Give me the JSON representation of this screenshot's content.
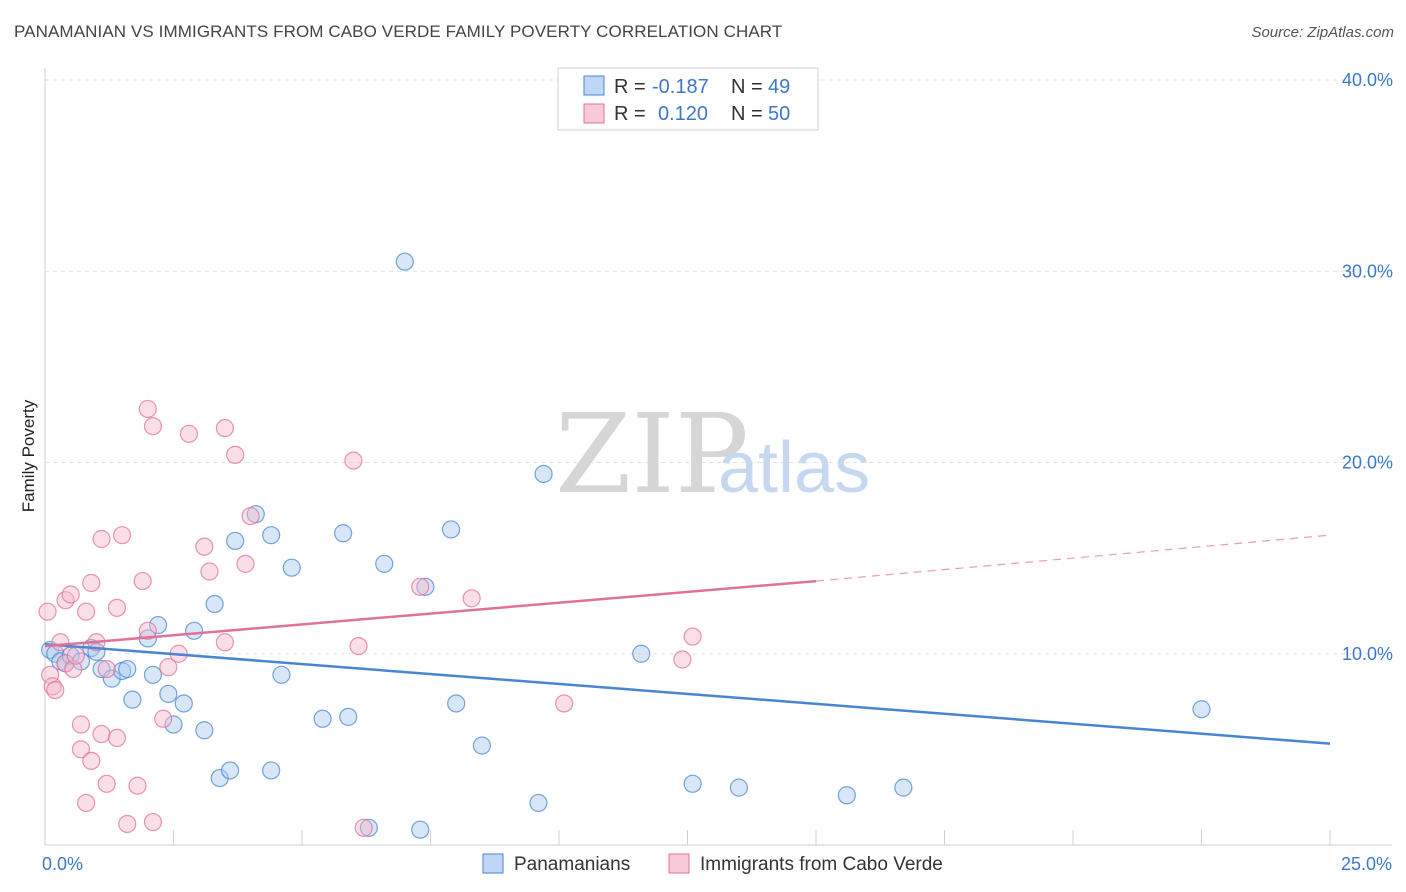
{
  "header": {
    "title": "PANAMANIAN VS IMMIGRANTS FROM CABO VERDE FAMILY POVERTY CORRELATION CHART",
    "source": "Source: ZipAtlas.com"
  },
  "watermark": {
    "zip": "ZIP",
    "atlas": "atlas"
  },
  "legend_top": {
    "rows": [
      {
        "r_label": "R =",
        "r_value": "-0.187",
        "n_label": "N =",
        "n_value": "49",
        "color": "#a9c9f0"
      },
      {
        "r_label": "R =",
        "r_value": "0.120",
        "n_label": "N =",
        "n_value": "50",
        "color": "#f5b8cc"
      }
    ]
  },
  "legend_bottom": {
    "items": [
      {
        "label": "Panamanians",
        "color": "#a9c9f0"
      },
      {
        "label": "Immigrants from Cabo Verde",
        "color": "#f5b8cc"
      }
    ]
  },
  "chart_data": {
    "type": "scatter",
    "title": "PANAMANIAN VS IMMIGRANTS FROM CABO VERDE FAMILY POVERTY CORRELATION CHART",
    "xlabel": "",
    "ylabel": "Family Poverty",
    "xlim": [
      0,
      25
    ],
    "ylim": [
      0,
      40
    ],
    "x_tick_labels": [
      {
        "value": 0,
        "label": "0.0%"
      },
      {
        "value": 25,
        "label": "25.0%"
      }
    ],
    "y_tick_labels": [
      {
        "value": 10,
        "label": "10.0%"
      },
      {
        "value": 20,
        "label": "20.0%"
      },
      {
        "value": 30,
        "label": "30.0%"
      },
      {
        "value": 40,
        "label": "40.0%"
      }
    ],
    "grid": true,
    "legend_placement": "top-center",
    "series": [
      {
        "name": "Panamanians",
        "color": "#4a86d0",
        "fill": "#a9c9f0",
        "trend": {
          "x": [
            0,
            25
          ],
          "y": [
            10.5,
            5.3
          ],
          "dashed_from": null
        },
        "points": [
          [
            0.1,
            10.2
          ],
          [
            0.2,
            10.0
          ],
          [
            0.3,
            9.6
          ],
          [
            0.4,
            9.5
          ],
          [
            0.5,
            9.9
          ],
          [
            0.7,
            9.6
          ],
          [
            0.9,
            10.3
          ],
          [
            1.0,
            10.1
          ],
          [
            1.1,
            9.2
          ],
          [
            1.3,
            8.7
          ],
          [
            1.5,
            9.1
          ],
          [
            1.6,
            9.2
          ],
          [
            1.7,
            7.6
          ],
          [
            2.0,
            10.8
          ],
          [
            2.1,
            8.9
          ],
          [
            2.2,
            11.5
          ],
          [
            2.4,
            7.9
          ],
          [
            2.5,
            6.3
          ],
          [
            2.7,
            7.4
          ],
          [
            2.9,
            11.2
          ],
          [
            3.1,
            6.0
          ],
          [
            3.3,
            12.6
          ],
          [
            3.4,
            3.5
          ],
          [
            3.6,
            3.9
          ],
          [
            3.7,
            15.9
          ],
          [
            4.1,
            17.3
          ],
          [
            4.4,
            16.2
          ],
          [
            4.4,
            3.9
          ],
          [
            4.6,
            8.9
          ],
          [
            4.8,
            14.5
          ],
          [
            5.4,
            6.6
          ],
          [
            5.8,
            16.3
          ],
          [
            5.9,
            6.7
          ],
          [
            6.3,
            0.9
          ],
          [
            6.6,
            14.7
          ],
          [
            7.0,
            30.5
          ],
          [
            7.3,
            0.8
          ],
          [
            7.4,
            13.5
          ],
          [
            7.9,
            16.5
          ],
          [
            8.0,
            7.4
          ],
          [
            8.5,
            5.2
          ],
          [
            9.6,
            2.2
          ],
          [
            9.7,
            19.4
          ],
          [
            11.6,
            10.0
          ],
          [
            12.6,
            3.2
          ],
          [
            13.5,
            3.0
          ],
          [
            15.6,
            2.6
          ],
          [
            16.7,
            3.0
          ],
          [
            22.5,
            7.1
          ]
        ]
      },
      {
        "name": "Immigrants from Cabo Verde",
        "color": "#e0729a",
        "fill": "#f5b8cc",
        "trend": {
          "x": [
            0,
            15
          ],
          "y": [
            10.4,
            13.8
          ],
          "dashed_x_end": 25,
          "dashed_y_end": 16.2
        },
        "points": [
          [
            0.05,
            12.2
          ],
          [
            0.1,
            8.9
          ],
          [
            0.15,
            8.3
          ],
          [
            0.2,
            8.1
          ],
          [
            0.3,
            10.6
          ],
          [
            0.4,
            9.5
          ],
          [
            0.4,
            12.8
          ],
          [
            0.5,
            13.1
          ],
          [
            0.55,
            9.2
          ],
          [
            0.6,
            9.9
          ],
          [
            0.7,
            5.0
          ],
          [
            0.7,
            6.3
          ],
          [
            0.8,
            2.2
          ],
          [
            0.8,
            12.2
          ],
          [
            0.9,
            13.7
          ],
          [
            0.9,
            4.4
          ],
          [
            1.0,
            10.6
          ],
          [
            1.1,
            5.8
          ],
          [
            1.1,
            16.0
          ],
          [
            1.2,
            3.2
          ],
          [
            1.2,
            9.2
          ],
          [
            1.4,
            12.4
          ],
          [
            1.4,
            5.6
          ],
          [
            1.5,
            16.2
          ],
          [
            1.6,
            1.1
          ],
          [
            1.8,
            3.1
          ],
          [
            1.9,
            13.8
          ],
          [
            2.0,
            11.2
          ],
          [
            2.0,
            22.8
          ],
          [
            2.1,
            21.9
          ],
          [
            2.1,
            1.2
          ],
          [
            2.3,
            6.6
          ],
          [
            2.4,
            9.3
          ],
          [
            2.6,
            10.0
          ],
          [
            2.8,
            21.5
          ],
          [
            3.1,
            15.6
          ],
          [
            3.2,
            14.3
          ],
          [
            3.5,
            21.8
          ],
          [
            3.5,
            10.6
          ],
          [
            3.7,
            20.4
          ],
          [
            3.9,
            14.7
          ],
          [
            4.0,
            17.2
          ],
          [
            6.0,
            20.1
          ],
          [
            6.1,
            10.4
          ],
          [
            7.3,
            13.5
          ],
          [
            8.3,
            12.9
          ],
          [
            10.1,
            7.4
          ],
          [
            12.4,
            9.7
          ],
          [
            12.6,
            10.9
          ],
          [
            6.2,
            0.9
          ]
        ]
      }
    ]
  }
}
